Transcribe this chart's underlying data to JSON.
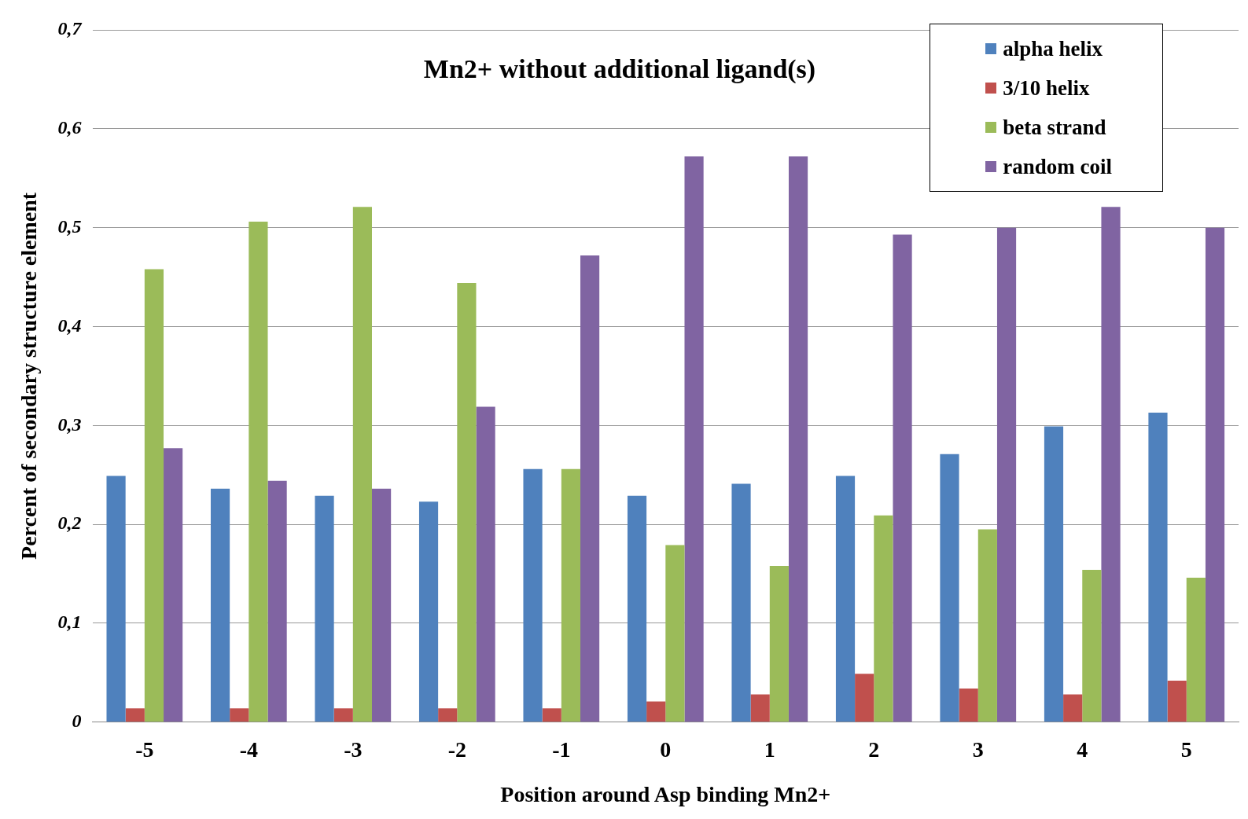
{
  "chart_data": {
    "type": "bar",
    "title": "Mn2+ without additional ligand(s)",
    "xlabel": "Position around Asp binding Mn2+",
    "ylabel": "Percent of secondary structure element",
    "categories": [
      "-5",
      "-4",
      "-3",
      "-2",
      "-1",
      "0",
      "1",
      "2",
      "3",
      "4",
      "5"
    ],
    "series": [
      {
        "name": "alpha helix",
        "color": "#4f81bd",
        "values": [
          0.249,
          0.236,
          0.229,
          0.223,
          0.256,
          0.229,
          0.241,
          0.249,
          0.271,
          0.299,
          0.313
        ]
      },
      {
        "name": "3/10 helix",
        "color": "#c0504d",
        "values": [
          0.014,
          0.014,
          0.014,
          0.014,
          0.014,
          0.021,
          0.028,
          0.049,
          0.034,
          0.028,
          0.042
        ]
      },
      {
        "name": "beta strand",
        "color": "#9bbb59",
        "values": [
          0.458,
          0.506,
          0.521,
          0.444,
          0.256,
          0.179,
          0.158,
          0.209,
          0.195,
          0.154,
          0.146
        ]
      },
      {
        "name": "random coil",
        "color": "#8064a2",
        "values": [
          0.277,
          0.244,
          0.236,
          0.319,
          0.472,
          0.572,
          0.572,
          0.493,
          0.5,
          0.521,
          0.5
        ]
      }
    ],
    "ylim": [
      0,
      0.7
    ],
    "yticks": [
      {
        "value": 0,
        "label": "0"
      },
      {
        "value": 0.1,
        "label": "0,1"
      },
      {
        "value": 0.2,
        "label": "0,2"
      },
      {
        "value": 0.3,
        "label": "0,3"
      },
      {
        "value": 0.4,
        "label": "0,4"
      },
      {
        "value": 0.5,
        "label": "0,5"
      },
      {
        "value": 0.6,
        "label": "0,6"
      },
      {
        "value": 0.7,
        "label": "0,7"
      }
    ],
    "grid": "y",
    "legend": "top right"
  }
}
